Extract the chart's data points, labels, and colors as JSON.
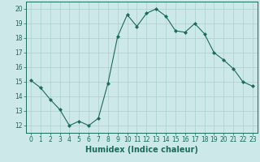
{
  "x": [
    0,
    1,
    2,
    3,
    4,
    5,
    6,
    7,
    8,
    9,
    10,
    11,
    12,
    13,
    14,
    15,
    16,
    17,
    18,
    19,
    20,
    21,
    22,
    23
  ],
  "y": [
    15.1,
    14.6,
    13.8,
    13.1,
    12.0,
    12.3,
    12.0,
    12.5,
    14.9,
    18.1,
    19.6,
    18.8,
    19.7,
    20.0,
    19.5,
    18.5,
    18.4,
    19.0,
    18.3,
    17.0,
    16.5,
    15.9,
    15.0,
    14.7
  ],
  "xlabel": "Humidex (Indice chaleur)",
  "ylim": [
    11.5,
    20.5
  ],
  "xlim": [
    -0.5,
    23.5
  ],
  "yticks": [
    12,
    13,
    14,
    15,
    16,
    17,
    18,
    19,
    20
  ],
  "xticks": [
    0,
    1,
    2,
    3,
    4,
    5,
    6,
    7,
    8,
    9,
    10,
    11,
    12,
    13,
    14,
    15,
    16,
    17,
    18,
    19,
    20,
    21,
    22,
    23
  ],
  "line_color": "#1a6b5a",
  "marker": "D",
  "marker_size": 2.0,
  "bg_color": "#cce8e8",
  "grid_color": "#aacfcf",
  "xlabel_fontsize": 7,
  "tick_fontsize": 5.5
}
